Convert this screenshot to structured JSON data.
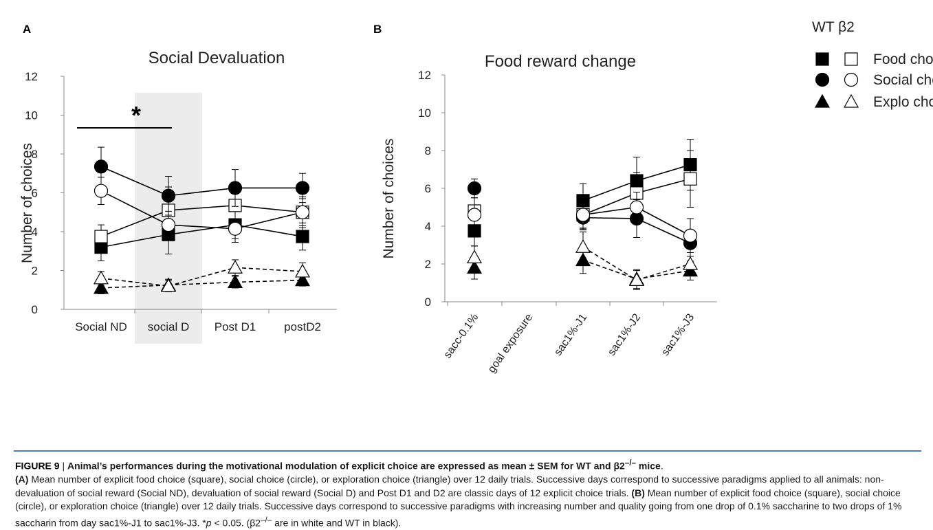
{
  "panels": [
    {
      "letter": "A",
      "title": "Social Devaluation",
      "ylabel": "Number of choices",
      "yticks": [
        0,
        2,
        4,
        6,
        8,
        10,
        12
      ],
      "ylim": [
        0,
        12
      ],
      "categories": [
        "Social ND",
        "social D",
        "Post D1",
        "postD2"
      ],
      "significance": "*"
    },
    {
      "letter": "B",
      "title": "Food reward change",
      "ylabel": "Number of choices",
      "yticks": [
        0,
        2,
        4,
        6,
        8,
        10,
        12
      ],
      "ylim": [
        0,
        12
      ],
      "categories": [
        "sacc-0.1%",
        "goal exposure",
        "sac1%-J1",
        "sac1%-J2",
        "sac1%-J3"
      ]
    }
  ],
  "legend": {
    "header": "WT β2",
    "rows": [
      {
        "label": "Food choice",
        "marker": "square"
      },
      {
        "label": "Social choice",
        "marker": "circle"
      },
      {
        "label": "Explo choice",
        "marker": "triangle"
      }
    ]
  },
  "chart_data": [
    {
      "type": "line",
      "title": "Social Devaluation",
      "ylabel": "Number of choices",
      "ylim": [
        0,
        12
      ],
      "categories": [
        "Social ND",
        "social D",
        "Post D1",
        "postD2"
      ],
      "highlighted_category": "social D",
      "annotation": "*",
      "series": [
        {
          "group": "WT",
          "choice": "Food",
          "marker": "square",
          "fill": "black",
          "dashed": false,
          "values": [
            3.2,
            3.85,
            4.35,
            3.75
          ],
          "errors": [
            0.7,
            1.0,
            0.9,
            0.7
          ]
        },
        {
          "group": "β2",
          "choice": "Food",
          "marker": "square",
          "fill": "white",
          "dashed": false,
          "values": [
            3.75,
            5.1,
            5.35,
            5.0
          ],
          "errors": [
            0.6,
            1.2,
            1.0,
            0.8
          ]
        },
        {
          "group": "WT",
          "choice": "Social",
          "marker": "circle",
          "fill": "black",
          "dashed": false,
          "values": [
            7.35,
            5.85,
            6.25,
            6.25
          ],
          "errors": [
            1.0,
            1.0,
            0.95,
            0.75
          ]
        },
        {
          "group": "β2",
          "choice": "Social",
          "marker": "circle",
          "fill": "white",
          "dashed": false,
          "values": [
            6.1,
            4.35,
            4.15,
            5.0
          ],
          "errors": [
            0.7,
            0.7,
            0.5,
            0.7
          ]
        },
        {
          "group": "WT",
          "choice": "Explo",
          "marker": "triangle",
          "fill": "black",
          "dashed": true,
          "values": [
            1.1,
            1.25,
            1.4,
            1.5
          ],
          "errors": [
            0.3,
            0.3,
            0.3,
            0.3
          ]
        },
        {
          "group": "β2",
          "choice": "Explo",
          "marker": "triangle",
          "fill": "white",
          "dashed": true,
          "values": [
            1.6,
            1.2,
            2.15,
            1.95
          ],
          "errors": [
            0.35,
            0.3,
            0.4,
            0.45
          ]
        }
      ]
    },
    {
      "type": "line",
      "title": "Food reward change",
      "ylabel": "Number of choices",
      "ylim": [
        0,
        12
      ],
      "categories": [
        "sacc-0.1%",
        "goal exposure",
        "sac1%-J1",
        "sac1%-J2",
        "sac1%-J3"
      ],
      "series": [
        {
          "group": "WT",
          "choice": "Food",
          "marker": "square",
          "fill": "black",
          "dashed": false,
          "values": [
            3.75,
            null,
            5.35,
            6.4,
            7.25
          ],
          "errors": [
            0.8,
            null,
            0.9,
            1.25,
            1.35
          ]
        },
        {
          "group": "β2",
          "choice": "Food",
          "marker": "square",
          "fill": "white",
          "dashed": false,
          "values": [
            4.8,
            null,
            4.6,
            5.75,
            6.5
          ],
          "errors": [
            1.0,
            null,
            0.8,
            1.1,
            1.5
          ]
        },
        {
          "group": "WT",
          "choice": "Social",
          "marker": "circle",
          "fill": "black",
          "dashed": false,
          "values": [
            6.0,
            null,
            4.45,
            4.4,
            3.1
          ],
          "errors": [
            0.5,
            null,
            0.6,
            1.0,
            0.7
          ]
        },
        {
          "group": "β2",
          "choice": "Social",
          "marker": "circle",
          "fill": "white",
          "dashed": false,
          "values": [
            4.6,
            null,
            4.6,
            5.0,
            3.5
          ],
          "errors": [
            0.9,
            null,
            0.7,
            0.8,
            0.9
          ]
        },
        {
          "group": "WT",
          "choice": "Explo",
          "marker": "triangle",
          "fill": "black",
          "dashed": true,
          "values": [
            1.8,
            null,
            2.2,
            1.2,
            1.65
          ],
          "errors": [
            0.6,
            null,
            0.7,
            0.5,
            0.5
          ]
        },
        {
          "group": "β2",
          "choice": "Explo",
          "marker": "triangle",
          "fill": "white",
          "dashed": true,
          "values": [
            2.35,
            null,
            2.9,
            1.15,
            2.0
          ],
          "errors": [
            0.6,
            null,
            0.8,
            0.5,
            0.6
          ]
        }
      ]
    }
  ],
  "caption": {
    "title_lead": "FIGURE 9",
    "title_sep": " | ",
    "title_bold_1": "Animal’s performances during the motivational modulation of explicit choice are expressed as mean ",
    "title_pm": "±",
    "title_bold_2": " SEM for WT and β2",
    "title_sup": "–/–",
    "title_bold_3": " mice",
    "title_end": ".",
    "a_label": "(A)",
    "a_text": " Mean number of explicit food choice (square), social choice (circle), or exploration choice (triangle) over 12 daily trials. Successive days correspond to successive paradigms applied to all animals: non-devaluation of social reward (Social ND), devaluation of social reward (Social D) and Post D1 and D2 are classic days of 12 explicit choice trials.",
    "b_label": "(B)",
    "b_text": " Mean number of explicit food choice (square), social choice (circle), or exploration choice (triangle) over 12 daily trials. Successive days correspond to successive paradigms with increasing number and quality going from one drop of 0.1% saccharine to two drops of 1% saccharin from day sac1%-J1 to sac1%-J3. *",
    "p_italic": "p",
    "p_rest": " < 0.05. (β2",
    "p_sup": "–/–",
    "p_end": " are in white and WT in black)."
  }
}
